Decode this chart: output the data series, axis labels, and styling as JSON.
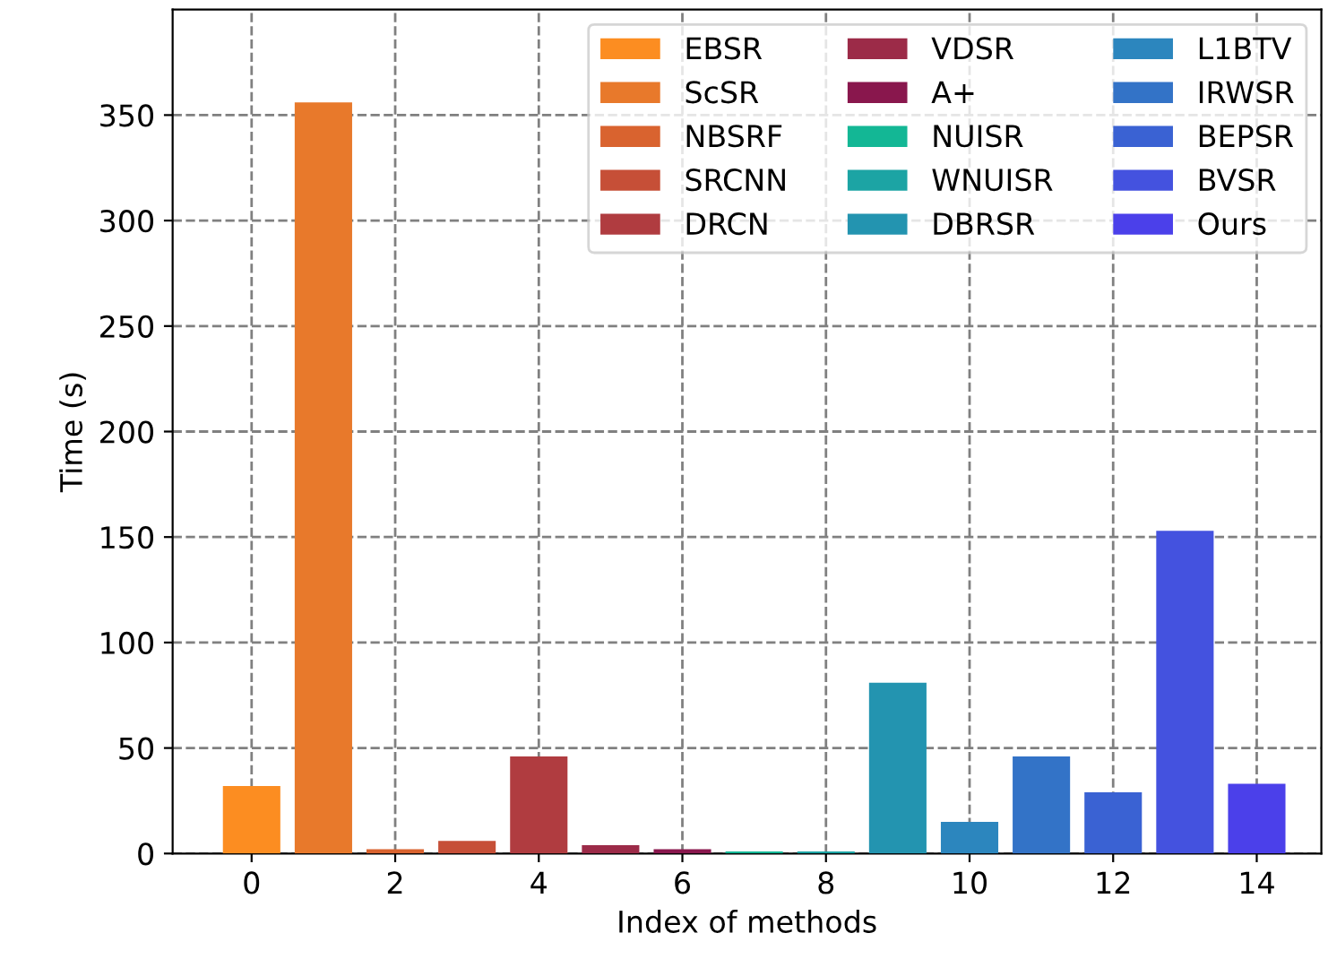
{
  "chart_data": {
    "type": "bar",
    "xlabel": "Index of methods",
    "ylabel": "Time (s)",
    "x": [
      0,
      1,
      2,
      3,
      4,
      5,
      6,
      7,
      8,
      9,
      10,
      11,
      12,
      13,
      14
    ],
    "series": [
      {
        "name": "EBSR",
        "color": "#fc8d21",
        "values": [
          32,
          null,
          null,
          null,
          null,
          null,
          null,
          null,
          null,
          null,
          null,
          null,
          null,
          null,
          null
        ]
      },
      {
        "name": "ScSR",
        "color": "#e8792b",
        "values": [
          null,
          356,
          null,
          null,
          null,
          null,
          null,
          null,
          null,
          null,
          null,
          null,
          null,
          null,
          null
        ]
      },
      {
        "name": "NBSRF",
        "color": "#d9632f",
        "values": [
          null,
          null,
          2,
          null,
          null,
          null,
          null,
          null,
          null,
          null,
          null,
          null,
          null,
          null,
          null
        ]
      },
      {
        "name": "SRCNN",
        "color": "#c64f37",
        "values": [
          null,
          null,
          null,
          6,
          null,
          null,
          null,
          null,
          null,
          null,
          null,
          null,
          null,
          null,
          null
        ]
      },
      {
        "name": "DRCN",
        "color": "#b03c40",
        "values": [
          null,
          null,
          null,
          null,
          46,
          null,
          null,
          null,
          null,
          null,
          null,
          null,
          null,
          null,
          null
        ]
      },
      {
        "name": "VDSR",
        "color": "#9c2b48",
        "values": [
          null,
          null,
          null,
          null,
          null,
          4,
          null,
          null,
          null,
          null,
          null,
          null,
          null,
          null,
          null
        ]
      },
      {
        "name": "A+",
        "color": "#89174d",
        "values": [
          null,
          null,
          null,
          null,
          null,
          null,
          2,
          null,
          null,
          null,
          null,
          null,
          null,
          null,
          null
        ]
      },
      {
        "name": "NUISR",
        "color": "#13b795",
        "values": [
          null,
          null,
          null,
          null,
          null,
          null,
          null,
          1,
          null,
          null,
          null,
          null,
          null,
          null,
          null
        ]
      },
      {
        "name": "WNUISR",
        "color": "#1ca4a4",
        "values": [
          null,
          null,
          null,
          null,
          null,
          null,
          null,
          null,
          1,
          null,
          null,
          null,
          null,
          null,
          null
        ]
      },
      {
        "name": "DBRSR",
        "color": "#2394b0",
        "values": [
          null,
          null,
          null,
          null,
          null,
          null,
          null,
          null,
          null,
          81,
          null,
          null,
          null,
          null,
          null
        ]
      },
      {
        "name": "L1BTV",
        "color": "#2c86be",
        "values": [
          null,
          null,
          null,
          null,
          null,
          null,
          null,
          null,
          null,
          null,
          15,
          null,
          null,
          null,
          null
        ]
      },
      {
        "name": "IRWSR",
        "color": "#3373c7",
        "values": [
          null,
          null,
          null,
          null,
          null,
          null,
          null,
          null,
          null,
          null,
          null,
          46,
          null,
          null,
          null
        ]
      },
      {
        "name": "BEPSR",
        "color": "#3a62d3",
        "values": [
          null,
          null,
          null,
          null,
          null,
          null,
          null,
          null,
          null,
          null,
          null,
          null,
          29,
          null,
          null
        ]
      },
      {
        "name": "BVSR",
        "color": "#4452df",
        "values": [
          null,
          null,
          null,
          null,
          null,
          null,
          null,
          null,
          null,
          null,
          null,
          null,
          null,
          153,
          null
        ]
      },
      {
        "name": "Ours",
        "color": "#4b40ea",
        "values": [
          null,
          null,
          null,
          null,
          null,
          null,
          null,
          null,
          null,
          null,
          null,
          null,
          null,
          null,
          33
        ]
      }
    ],
    "xlim": [
      -1.1,
      14.9
    ],
    "xticks": [
      0,
      2,
      4,
      6,
      8,
      10,
      12,
      14
    ],
    "ylim": [
      0,
      400
    ],
    "yticks": [
      0,
      50,
      100,
      150,
      200,
      250,
      300,
      350
    ],
    "grid": true,
    "legend": "top right"
  }
}
